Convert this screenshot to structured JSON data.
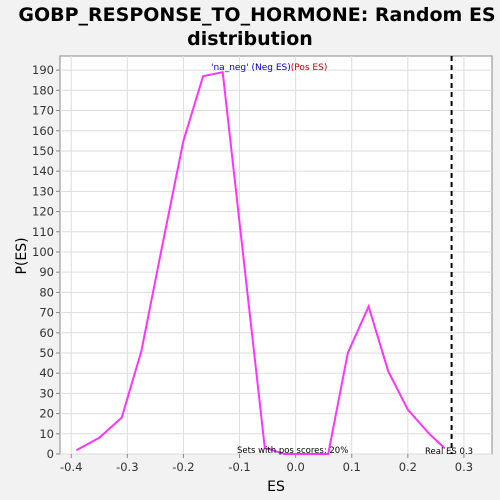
{
  "chart_data": {
    "type": "line",
    "title_line1": "GOBP_RESPONSE_TO_HORMONE: Random ES",
    "title_line2": "distribution",
    "xlabel": "ES",
    "ylabel": "P(ES)",
    "xlim": [
      -0.42,
      0.35
    ],
    "ylim": [
      0,
      197
    ],
    "xticks": [
      -0.4,
      -0.3,
      -0.2,
      -0.1,
      0.0,
      0.1,
      0.2,
      0.3
    ],
    "xtick_labels": [
      "-0.4",
      "-0.3",
      "-0.2",
      "-0.1",
      "0.0",
      "0.1",
      "0.2",
      "0.3"
    ],
    "yticks": [
      0,
      10,
      20,
      30,
      40,
      50,
      60,
      70,
      80,
      90,
      100,
      110,
      120,
      130,
      140,
      150,
      160,
      170,
      180,
      190
    ],
    "ytick_labels": [
      "0",
      "10",
      "20",
      "30",
      "40",
      "50",
      "60",
      "70",
      "80",
      "90",
      "100",
      "110",
      "120",
      "130",
      "140",
      "150",
      "160",
      "170",
      "180",
      "190"
    ],
    "grid": true,
    "series": [
      {
        "color": "#ff33ff",
        "x": [
          -0.39,
          -0.35,
          -0.31,
          -0.275,
          -0.24,
          -0.2,
          -0.165,
          -0.13,
          -0.09,
          -0.055,
          -0.02,
          0.02,
          0.058,
          0.093,
          0.13,
          0.165,
          0.2,
          0.238,
          0.265
        ],
        "y": [
          2,
          8,
          18,
          51,
          100,
          155,
          187,
          189,
          90,
          3,
          0,
          0,
          0,
          50,
          73,
          41,
          22,
          10,
          3
        ]
      }
    ],
    "legend": {
      "neg_label": "'na_neg' (Neg ES)",
      "pos_label": "(Pos ES)",
      "neg_color": "#0000cc",
      "pos_color": "#cc0000"
    },
    "vline": {
      "x": 0.278,
      "style": "dashed",
      "color": "#000000"
    },
    "annotations": {
      "sets_label": "Sets with pos scores: 20%",
      "real_es_label": "Real ES 0.3"
    },
    "colors": {
      "plot_bg": "#ffffff",
      "page_bg": "#f2f2f2",
      "grid": "#dddddd",
      "axis": "#888888"
    }
  }
}
